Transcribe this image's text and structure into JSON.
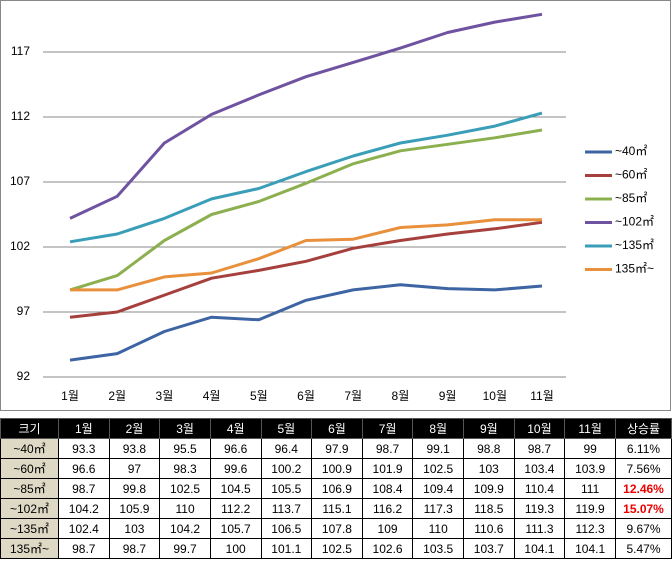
{
  "chart_data": {
    "type": "line",
    "categories": [
      "1월",
      "2월",
      "3월",
      "4월",
      "5월",
      "6월",
      "7월",
      "8월",
      "9월",
      "10월",
      "11월"
    ],
    "series": [
      {
        "name": "~40㎡",
        "color": "#3d64a3",
        "values": [
          93.3,
          93.8,
          95.5,
          96.6,
          96.4,
          97.9,
          98.7,
          99.1,
          98.8,
          98.7,
          99
        ]
      },
      {
        "name": "~60㎡",
        "color": "#a6403d",
        "values": [
          96.6,
          97,
          98.3,
          99.6,
          100.2,
          100.9,
          101.9,
          102.5,
          103,
          103.4,
          103.9
        ]
      },
      {
        "name": "~85㎡",
        "color": "#8cb04f",
        "values": [
          98.7,
          99.8,
          102.5,
          104.5,
          105.5,
          106.9,
          108.4,
          109.4,
          109.9,
          110.4,
          111
        ]
      },
      {
        "name": "~102㎡",
        "color": "#6f52a0",
        "values": [
          104.2,
          105.9,
          110,
          112.2,
          113.7,
          115.1,
          116.2,
          117.3,
          118.5,
          119.3,
          119.9
        ]
      },
      {
        "name": "~135㎡",
        "color": "#3a9eb9",
        "values": [
          102.4,
          103,
          104.2,
          105.7,
          106.5,
          107.8,
          109,
          110,
          110.6,
          111.3,
          112.3
        ]
      },
      {
        "name": "135㎡~",
        "color": "#e8903c",
        "values": [
          98.7,
          98.7,
          99.7,
          100,
          101.1,
          102.5,
          102.6,
          103.5,
          103.7,
          104.1,
          104.1
        ]
      }
    ],
    "ylim": [
      92,
      121
    ],
    "yticks": [
      92,
      97,
      102,
      107,
      112,
      117
    ],
    "grid": true,
    "legend": "right"
  },
  "table": {
    "header_first": "크기",
    "header_last": "상승률",
    "rates": [
      {
        "text": "6.11%",
        "highlight": false
      },
      {
        "text": "7.56%",
        "highlight": false
      },
      {
        "text": "12.46%",
        "highlight": true
      },
      {
        "text": "15.07%",
        "highlight": true
      },
      {
        "text": "9.67%",
        "highlight": false
      },
      {
        "text": "5.47%",
        "highlight": false
      }
    ]
  }
}
